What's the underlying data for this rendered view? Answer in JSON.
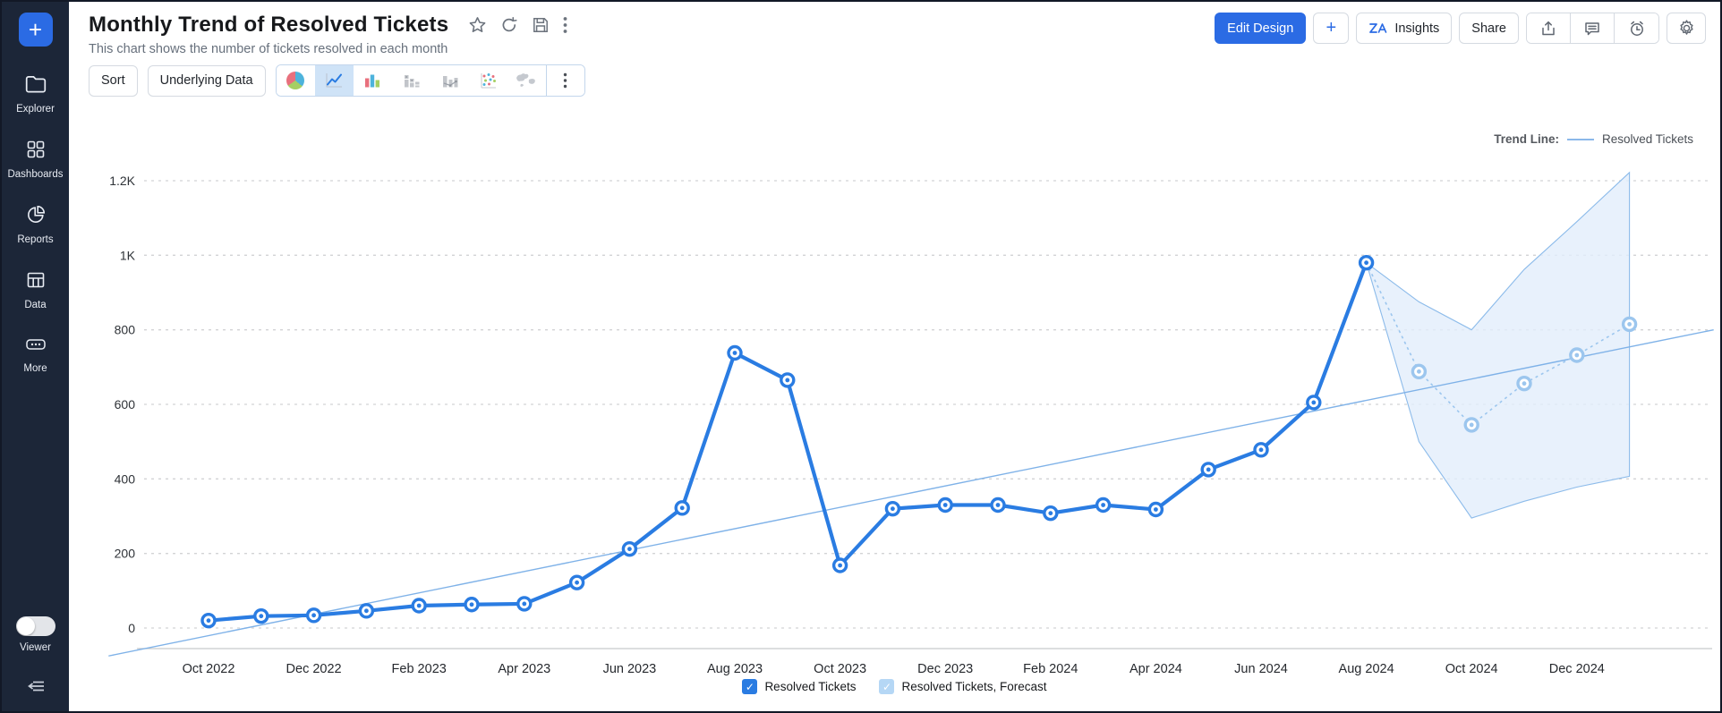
{
  "sidebar": {
    "items": [
      {
        "label": "Explorer"
      },
      {
        "label": "Dashboards"
      },
      {
        "label": "Reports"
      },
      {
        "label": "Data"
      },
      {
        "label": "More"
      }
    ],
    "viewer_label": "Viewer",
    "create_label": "+"
  },
  "header": {
    "title": "Monthly Trend of Resolved Tickets",
    "subtitle": "This chart shows the number of tickets resolved in each month",
    "icons": [
      "star-icon",
      "refresh-icon",
      "save-icon",
      "kebab-menu-icon"
    ]
  },
  "actions": {
    "edit_design": "Edit Design",
    "add": "+",
    "insights": "Insights",
    "share": "Share",
    "icon_buttons": [
      "export-icon",
      "comment-icon",
      "alerts-icon",
      "settings-icon"
    ]
  },
  "toolbar": {
    "sort": "Sort",
    "underlying_data": "Underlying Data",
    "chart_types": [
      "pie-chart",
      "line-chart",
      "bar-chart",
      "stacked-bar-chart",
      "combo-chart",
      "scatter-chart",
      "map-chart",
      "more-chart-options"
    ],
    "selected_chart_type": "line-chart"
  },
  "chart_data": {
    "type": "line",
    "title": "Monthly Trend of Resolved Tickets",
    "xlabel": "",
    "ylabel": "",
    "x": [
      "Oct 2022",
      "Nov 2022",
      "Dec 2022",
      "Jan 2023",
      "Feb 2023",
      "Mar 2023",
      "Apr 2023",
      "May 2023",
      "Jun 2023",
      "Jul 2023",
      "Aug 2023",
      "Sep 2023",
      "Oct 2023",
      "Nov 2023",
      "Dec 2023",
      "Jan 2024",
      "Feb 2024",
      "Mar 2024",
      "Apr 2024",
      "May 2024",
      "Jun 2024",
      "Jul 2024",
      "Aug 2024",
      "Sep 2024",
      "Oct 2024",
      "Nov 2024",
      "Dec 2024",
      "Jan 2025"
    ],
    "x_axis_ticks": [
      "Oct 2022",
      "Dec 2022",
      "Feb 2023",
      "Apr 2023",
      "Jun 2023",
      "Aug 2023",
      "Oct 2023",
      "Dec 2023",
      "Feb 2024",
      "Apr 2024",
      "Jun 2024",
      "Aug 2024",
      "Oct 2024",
      "Dec 2024"
    ],
    "series": [
      {
        "name": "Resolved Tickets",
        "color": "#2a7ce2",
        "values": [
          20,
          32,
          34,
          46,
          60,
          63,
          65,
          122,
          212,
          322,
          738,
          665,
          168,
          320,
          330,
          330,
          308,
          330,
          318,
          425,
          478,
          605,
          980
        ]
      }
    ],
    "forecast": {
      "name": "Resolved Tickets, Forecast",
      "color": "#9cc6ee",
      "band_fill": "#e2eefb",
      "band_stroke": "#8cbbea",
      "start_index": 23,
      "values": [
        688,
        545,
        656,
        732,
        815
      ],
      "upper": [
        875,
        800,
        962,
        1090,
        1222
      ],
      "lower": [
        500,
        295,
        340,
        378,
        407
      ]
    },
    "trend_line": {
      "label": "Trend Line:",
      "series_label": "Resolved Tickets",
      "color": "#7fb2e8",
      "points_month_units": [
        [
          -1.9,
          -75
        ],
        [
          28.6,
          800
        ]
      ]
    },
    "ylim": [
      0,
      1200
    ],
    "yticks": [
      "0",
      "200",
      "400",
      "600",
      "800",
      "1K",
      "1.2K"
    ],
    "ytick_values": [
      0,
      200,
      400,
      600,
      800,
      1000,
      1200
    ],
    "grid": true,
    "legend_position": "bottom",
    "legend": [
      {
        "label": "Resolved Tickets",
        "checked": true,
        "color": "#2a7ce2"
      },
      {
        "label": "Resolved Tickets, Forecast",
        "checked": true,
        "color": "#b5d7f5"
      }
    ]
  }
}
